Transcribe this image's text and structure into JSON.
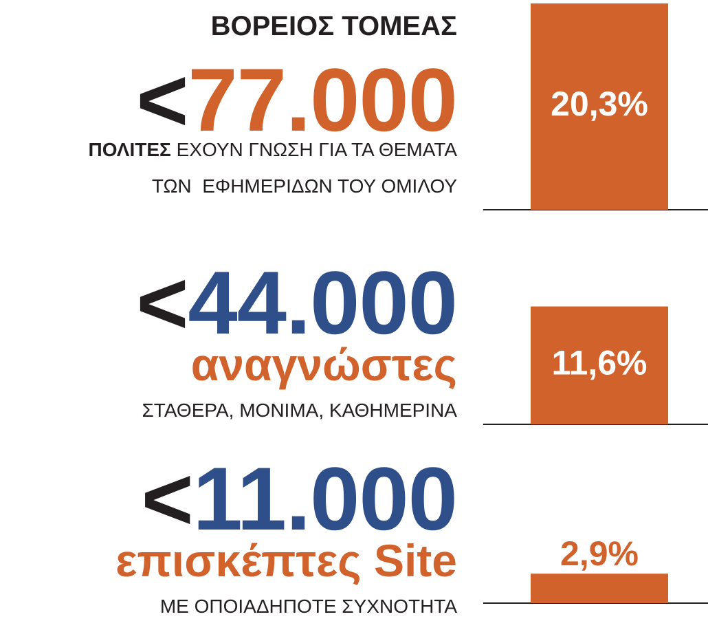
{
  "title": "ΒΟΡΕΙΟΣ ΤΟΜΕΑΣ",
  "sections": [
    {
      "prefix": "<",
      "number": "77.000",
      "caption_bold": "ΠΟΛΙΤΕΣ",
      "caption": " ΕΧΟΥΝ ΓΝΩΣΗ ΓΙΑ ΤΑ ΘΕΜΑΤΑ",
      "caption2": "ΤΩΝ  ΕΦΗΜΕΡΙΔΩΝ ΤΟΥ ΟΜΙΛΟΥ",
      "bar": {
        "value": 20.3,
        "label": "20,3%"
      }
    },
    {
      "prefix": "<",
      "number": "44.000",
      "word": "αναγνώστες",
      "caption": "ΣΤΑΘΕΡΑ, ΜΟΝΙΜΑ, ΚΑΘΗΜΕΡΙΝΑ",
      "bar": {
        "value": 11.6,
        "label": "11,6%"
      }
    },
    {
      "prefix": "<",
      "number": "11.000",
      "word": "επισκέπτες Site",
      "caption": "ΜΕ ΟΠΟΙΑΔΗΠΟΤΕ ΣΥΧΝΟΤΗΤΑ",
      "bar": {
        "value": 2.9,
        "label": "2,9%"
      }
    }
  ],
  "colors": {
    "orange": "#d2622b",
    "blue": "#2e4f8a",
    "dark": "#231f20"
  }
}
